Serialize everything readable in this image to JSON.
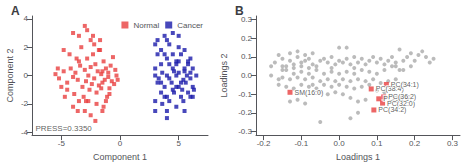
{
  "chart_data": [
    {
      "type": "scatter",
      "title": "A",
      "xlabel": "Component 1",
      "ylabel": "Component 2",
      "xlim": [
        -7.5,
        7.5
      ],
      "ylim": [
        -4.2,
        4.2
      ],
      "xticks": [
        -5,
        0,
        5
      ],
      "yticks": [
        -4,
        -2,
        0,
        2,
        4
      ],
      "grid": false,
      "legend": "upper right",
      "annotations": [
        {
          "text": "PRESS=0.3350",
          "x": -7.2,
          "y": -4.0
        }
      ],
      "series": [
        {
          "name": "Normal",
          "color": "#e84040",
          "marker": "square",
          "x": [
            -5.5,
            -5.2,
            -4.8,
            -4.5,
            -4.2,
            -4.0,
            -3.8,
            -3.6,
            -3.5,
            -3.4,
            -3.2,
            -3.0,
            -2.9,
            -2.8,
            -2.7,
            -2.6,
            -2.5,
            -2.4,
            -2.3,
            -2.2,
            -2.1,
            -2.0,
            -1.9,
            -1.8,
            -1.7,
            -1.6,
            -1.5,
            -1.4,
            -1.3,
            -1.2,
            -1.1,
            -1.0,
            -0.9,
            -0.8,
            -0.7,
            -0.6,
            -0.5,
            -4.7,
            -4.3,
            -3.9,
            -3.3,
            -2.9,
            -2.5,
            -2.0,
            -1.5,
            -3.0,
            -3.5,
            -4.0,
            -4.5,
            -2.2,
            -1.8,
            -3.7,
            -3.1,
            -2.7,
            -2.3,
            -1.6,
            -1.2,
            -0.9,
            -1.4,
            -2.5,
            -3.0,
            -3.5,
            -4.0,
            -3.6,
            -2.8,
            -2.1,
            -1.7,
            -4.8,
            -5.0,
            -5.3,
            -0.3,
            -0.2,
            -0.4,
            -1.0,
            -1.5
          ],
          "values": [
            0.1,
            -0.2,
            0.3,
            -0.5,
            0.5,
            -0.1,
            0.2,
            -0.3,
            1.0,
            0.7,
            -0.8,
            0.4,
            -0.4,
            1.2,
            0.0,
            -1.0,
            0.6,
            -0.6,
            1.5,
            -0.2,
            0.8,
            -1.2,
            0.3,
            -0.7,
            1.8,
            0.1,
            -0.5,
            1.0,
            -0.3,
            0.5,
            -1.5,
            0.2,
            -0.9,
            0.7,
            -0.4,
            1.3,
            -0.6,
            -1.5,
            1.5,
            -1.3,
            2.0,
            -1.8,
            2.5,
            -2.0,
            -2.5,
            3.5,
            2.8,
            -2.2,
            -1.0,
            2.2,
            1.8,
            1.2,
            -1.5,
            -1.8,
            2.8,
            -0.9,
            -1.8,
            -1.3,
            -2.2,
            -2.8,
            -2.5,
            -1.8,
            3.0,
            -2.5,
            3.2,
            -3.2,
            2.5,
            1.8,
            -0.8,
            0.5,
            0.0,
            -0.3,
            0.4,
            -0.1,
            0.3
          ]
        },
        {
          "name": "Cancer",
          "color": "#1a1aaa",
          "marker": "square",
          "x": [
            3.0,
            3.5,
            4.0,
            4.5,
            5.0,
            5.5,
            6.0,
            3.2,
            3.8,
            4.2,
            4.8,
            5.2,
            5.8,
            3.5,
            4.0,
            4.5,
            5.0,
            5.5,
            6.2,
            3.0,
            3.6,
            4.2,
            4.8,
            5.4,
            6.0,
            3.2,
            3.8,
            4.4,
            5.0,
            5.6,
            6.2,
            3.5,
            4.0,
            4.6,
            5.2,
            5.8,
            3.0,
            3.6,
            4.2,
            4.8,
            5.4,
            6.0,
            3.2,
            5.0,
            4.5,
            6.5,
            6.3,
            3.0,
            4.0,
            5.5,
            4.8,
            4.2,
            5.8,
            3.8,
            4.5,
            5.0,
            3.5,
            6.0,
            3.0,
            4.0,
            5.5,
            5.2,
            3.8,
            4.8,
            6.2,
            3.3,
            4.6,
            5.3,
            4.0,
            5.7
          ],
          "values": [
            2.2,
            1.8,
            2.5,
            1.5,
            2.0,
            1.8,
            1.2,
            1.5,
            2.8,
            2.2,
            1.0,
            1.5,
            0.8,
            0.8,
            1.2,
            0.5,
            1.0,
            0.3,
            0.5,
            0.5,
            0.2,
            -0.2,
            0.0,
            -0.3,
            -0.2,
            -0.5,
            -0.8,
            -0.5,
            -0.8,
            -0.5,
            -0.8,
            -1.2,
            -1.5,
            -1.2,
            -1.5,
            -1.2,
            -1.8,
            -2.0,
            -1.8,
            -2.2,
            -1.8,
            -1.5,
            2.5,
            2.8,
            3.0,
            0.0,
            -1.0,
            -2.5,
            -3.0,
            -2.5,
            0.8,
            0.8,
            1.0,
            1.5,
            -1.0,
            0.2,
            -0.5,
            0.2,
            0.0,
            0.0,
            0.5,
            -0.5,
            -1.5,
            -0.8,
            -1.5,
            -0.2,
            0.3,
            -1.0,
            -2.5,
            0.0
          ]
        }
      ]
    },
    {
      "type": "scatter",
      "title": "B",
      "xlabel": "Loadings 1",
      "ylabel": "Loadings 2",
      "xlim": [
        -0.22,
        0.32
      ],
      "ylim": [
        -0.32,
        0.32
      ],
      "xticks": [
        -0.2,
        -0.1,
        {
          "value": 0.0,
          "label": "0.0"
        },
        0.1,
        0.2,
        0.3
      ],
      "yticks": [
        -0.3,
        -0.2,
        -0.1,
        {
          "value": 0.0,
          "label": "0.0"
        },
        0.1,
        0.2,
        0.3
      ],
      "grid": false,
      "series": [
        {
          "color": "#aaaaaa",
          "marker": "circle",
          "x": [
            -0.17,
            -0.15,
            -0.14,
            -0.13,
            -0.12,
            -0.11,
            -0.1,
            -0.09,
            -0.08,
            -0.07,
            -0.16,
            -0.15,
            -0.13,
            -0.12,
            -0.11,
            -0.1,
            -0.09,
            -0.08,
            -0.07,
            -0.06,
            -0.05,
            -0.04,
            -0.03,
            -0.02,
            -0.01,
            0.0,
            0.01,
            0.02,
            0.03,
            0.04,
            0.05,
            0.06,
            0.07,
            0.08,
            0.09,
            0.1,
            0.11,
            0.12,
            0.13,
            0.14,
            0.15,
            0.16,
            0.17,
            0.18,
            0.19,
            -0.14,
            -0.12,
            -0.1,
            -0.08,
            -0.06,
            -0.04,
            -0.02,
            0.0,
            0.02,
            0.04,
            0.06,
            0.08,
            0.1,
            0.12,
            0.14,
            -0.15,
            -0.13,
            -0.11,
            -0.09,
            -0.07,
            -0.05,
            -0.03,
            -0.01,
            0.01,
            0.03,
            0.05,
            0.07,
            0.09,
            0.11,
            0.13,
            0.15,
            0.17,
            -0.16,
            -0.14,
            -0.12,
            -0.1,
            -0.08,
            -0.06,
            -0.04,
            -0.02,
            0.0,
            0.02,
            0.04,
            0.06,
            0.08,
            -0.13,
            -0.11,
            -0.09,
            0.03,
            0.05,
            0.07,
            -0.05,
            -0.03,
            -0.01,
            0.01,
            0.1,
            0.12,
            0.05,
            0.03,
            -0.05,
            0.17,
            0.19,
            0.2,
            0.21,
            0.22,
            0.23,
            0.24,
            0.25,
            0.15,
            0.16,
            -0.18,
            -0.16,
            -0.07,
            0.0,
            0.02,
            -0.02,
            0.04,
            -0.15,
            -0.18
          ],
          "values": [
            0.07,
            0.09,
            0.05,
            0.08,
            0.06,
            0.1,
            0.07,
            0.08,
            0.09,
            0.06,
            0.11,
            0.05,
            0.12,
            0.04,
            0.13,
            0.05,
            0.11,
            0.04,
            0.12,
            0.05,
            0.08,
            0.09,
            0.07,
            0.1,
            0.06,
            0.08,
            0.07,
            0.09,
            0.06,
            0.1,
            0.07,
            0.09,
            0.06,
            0.08,
            0.1,
            0.07,
            0.09,
            0.06,
            0.08,
            0.1,
            0.07,
            0.14,
            0.08,
            0.1,
            0.12,
            0.03,
            0.01,
            0.02,
            0.01,
            0.03,
            0.01,
            0.02,
            0.01,
            0.02,
            0.01,
            0.03,
            0.02,
            0.01,
            0.03,
            0.05,
            -0.01,
            -0.02,
            -0.01,
            -0.02,
            -0.01,
            -0.03,
            -0.02,
            -0.03,
            -0.02,
            -0.03,
            -0.02,
            -0.03,
            -0.02,
            -0.04,
            -0.03,
            -0.02,
            -0.04,
            -0.05,
            -0.06,
            -0.07,
            -0.05,
            -0.06,
            -0.07,
            -0.05,
            -0.06,
            -0.05,
            -0.06,
            -0.07,
            -0.06,
            -0.05,
            -0.14,
            -0.13,
            -0.15,
            -0.12,
            -0.14,
            -0.13,
            -0.09,
            -0.1,
            -0.09,
            -0.1,
            -0.08,
            -0.09,
            -0.2,
            -0.23,
            -0.25,
            0.03,
            0.05,
            0.08,
            0.11,
            0.13,
            0.1,
            0.07,
            0.09,
            0.05,
            0.03,
            0.0,
            -0.02,
            -0.05,
            0.15,
            0.15,
            0.04,
            0.04,
            0.03,
            0.05
          ]
        },
        {
          "color": "#e84040",
          "marker": "square",
          "x": [
            -0.13,
            0.085,
            0.125,
            0.105,
            0.115,
            0.118,
            0.092
          ],
          "values": [
            -0.09,
            -0.072,
            -0.048,
            -0.125,
            -0.148,
            -0.115,
            -0.185
          ],
          "labels": [
            "SM(16:0)",
            "PC(38:4)",
            "PC(34:1)",
            "PC(36:3)",
            "PC(32:0)",
            "PC(36:2)",
            "PC(34:2)"
          ]
        }
      ]
    }
  ]
}
